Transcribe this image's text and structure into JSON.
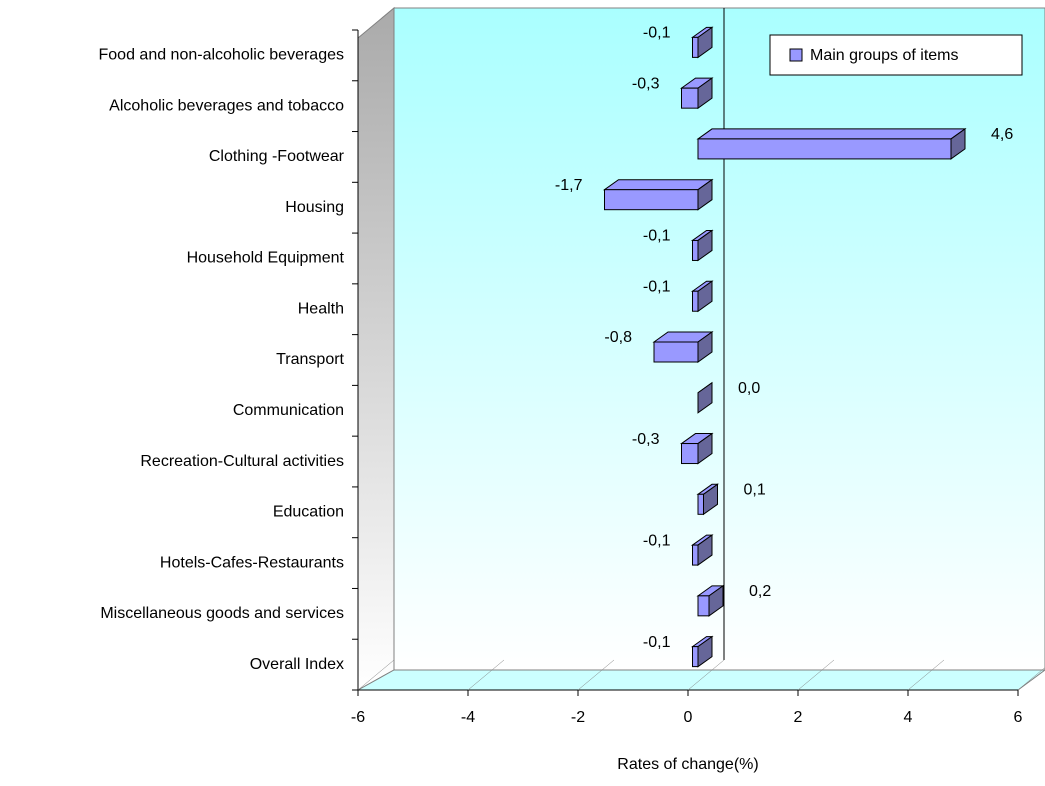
{
  "chart_data": {
    "type": "bar",
    "orientation": "horizontal",
    "categories": [
      "Food and non-alcoholic beverages",
      "Alcoholic beverages and tobacco",
      "Clothing -Footwear",
      "Housing",
      "Household Equipment",
      "Health",
      "Transport",
      "Communication",
      "Recreation-Cultural activities",
      "Education",
      "Hotels-Cafes-Restaurants",
      "Miscellaneous goods and services",
      "Overall Index"
    ],
    "series": [
      {
        "name": "Main groups of items",
        "color": "#9999ff",
        "values": [
          -0.1,
          -0.3,
          4.6,
          -1.7,
          -0.1,
          -0.1,
          -0.8,
          0.0,
          -0.3,
          0.1,
          -0.1,
          0.2,
          -0.1
        ],
        "value_labels": [
          "-0,1",
          "-0,3",
          "4,6",
          "-1,7",
          "-0,1",
          "-0,1",
          "-0,8",
          "0,0",
          "-0,3",
          "0,1",
          "-0,1",
          "0,2",
          "-0,1"
        ]
      }
    ],
    "xlim": [
      -6,
      6
    ],
    "xticks": [
      -6,
      -4,
      -2,
      0,
      2,
      4,
      6
    ],
    "xlabel": "Rates of change(%)",
    "legend": "top-right"
  }
}
